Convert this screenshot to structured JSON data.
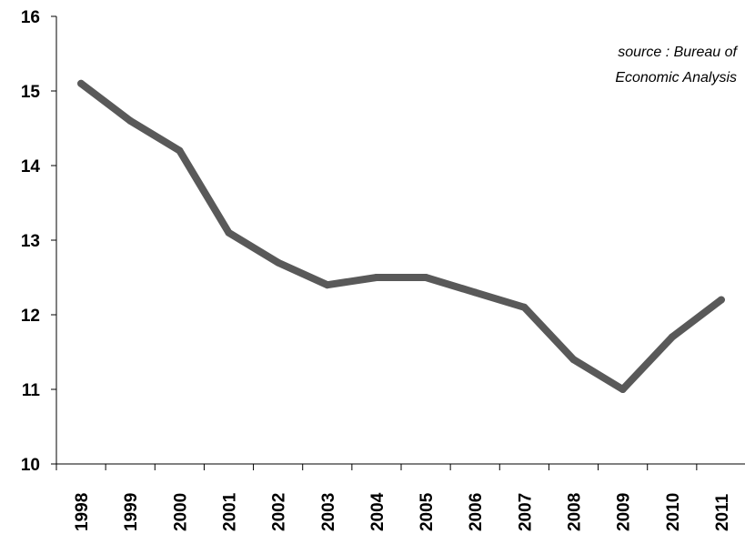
{
  "chart_data": {
    "type": "line",
    "title": "",
    "xlabel": "",
    "ylabel": "",
    "categories": [
      "1998",
      "1999",
      "2000",
      "2001",
      "2002",
      "2003",
      "2004",
      "2005",
      "2006",
      "2007",
      "2008",
      "2009",
      "2010",
      "2011"
    ],
    "series": [
      {
        "values": [
          15.1,
          14.6,
          14.2,
          13.1,
          12.7,
          12.4,
          12.5,
          12.5,
          12.3,
          12.1,
          11.4,
          11.0,
          11.7,
          12.2
        ]
      }
    ],
    "ylim": [
      10,
      16
    ],
    "yticks": [
      "10",
      "11",
      "12",
      "13",
      "14",
      "15",
      "16"
    ],
    "grid": false,
    "legend": "none",
    "annotation": {
      "line1": "source : Bureau of",
      "line2": "Economic Analysis"
    },
    "colors": {
      "line": "#595959",
      "axis": "#000000",
      "background": "#ffffff"
    }
  }
}
